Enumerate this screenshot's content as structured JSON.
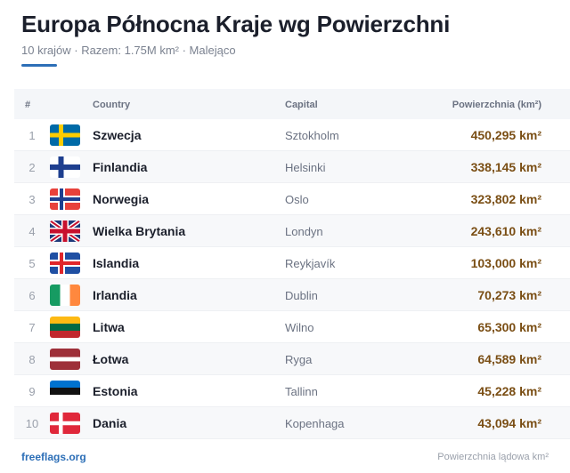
{
  "header": {
    "title": "Europa Północna Kraje wg Powierzchni",
    "subtitle": "10 krajów · Razem: 1.75M km² · Malejąco"
  },
  "table": {
    "columns": {
      "num": "#",
      "country": "Country",
      "capital": "Capital",
      "area": "Powierzchnia (km²)"
    },
    "rows": [
      {
        "num": "1",
        "flag": "sweden-flag-icon",
        "country": "Szwecja",
        "capital": "Sztokholm",
        "area": "450,295 km²"
      },
      {
        "num": "2",
        "flag": "finland-flag-icon",
        "country": "Finlandia",
        "capital": "Helsinki",
        "area": "338,145 km²"
      },
      {
        "num": "3",
        "flag": "norway-flag-icon",
        "country": "Norwegia",
        "capital": "Oslo",
        "area": "323,802 km²"
      },
      {
        "num": "4",
        "flag": "united-kingdom-flag-icon",
        "country": "Wielka Brytania",
        "capital": "Londyn",
        "area": "243,610 km²"
      },
      {
        "num": "5",
        "flag": "iceland-flag-icon",
        "country": "Islandia",
        "capital": "Reykjavík",
        "area": "103,000 km²"
      },
      {
        "num": "6",
        "flag": "ireland-flag-icon",
        "country": "Irlandia",
        "capital": "Dublin",
        "area": "70,273 km²"
      },
      {
        "num": "7",
        "flag": "lithuania-flag-icon",
        "country": "Litwa",
        "capital": "Wilno",
        "area": "65,300 km²"
      },
      {
        "num": "8",
        "flag": "latvia-flag-icon",
        "country": "Łotwa",
        "capital": "Ryga",
        "area": "64,589 km²"
      },
      {
        "num": "9",
        "flag": "estonia-flag-icon",
        "country": "Estonia",
        "capital": "Tallinn",
        "area": "45,228 km²"
      },
      {
        "num": "10",
        "flag": "denmark-flag-icon",
        "country": "Dania",
        "capital": "Kopenhaga",
        "area": "43,094 km²"
      }
    ]
  },
  "footer": {
    "brand": "freeflags.org",
    "note": "Powierzchnia lądowa km²"
  },
  "colors": {
    "accent": "#2d6fb7",
    "area_text": "#7a4e14",
    "header_bg": "#f4f6f9"
  }
}
